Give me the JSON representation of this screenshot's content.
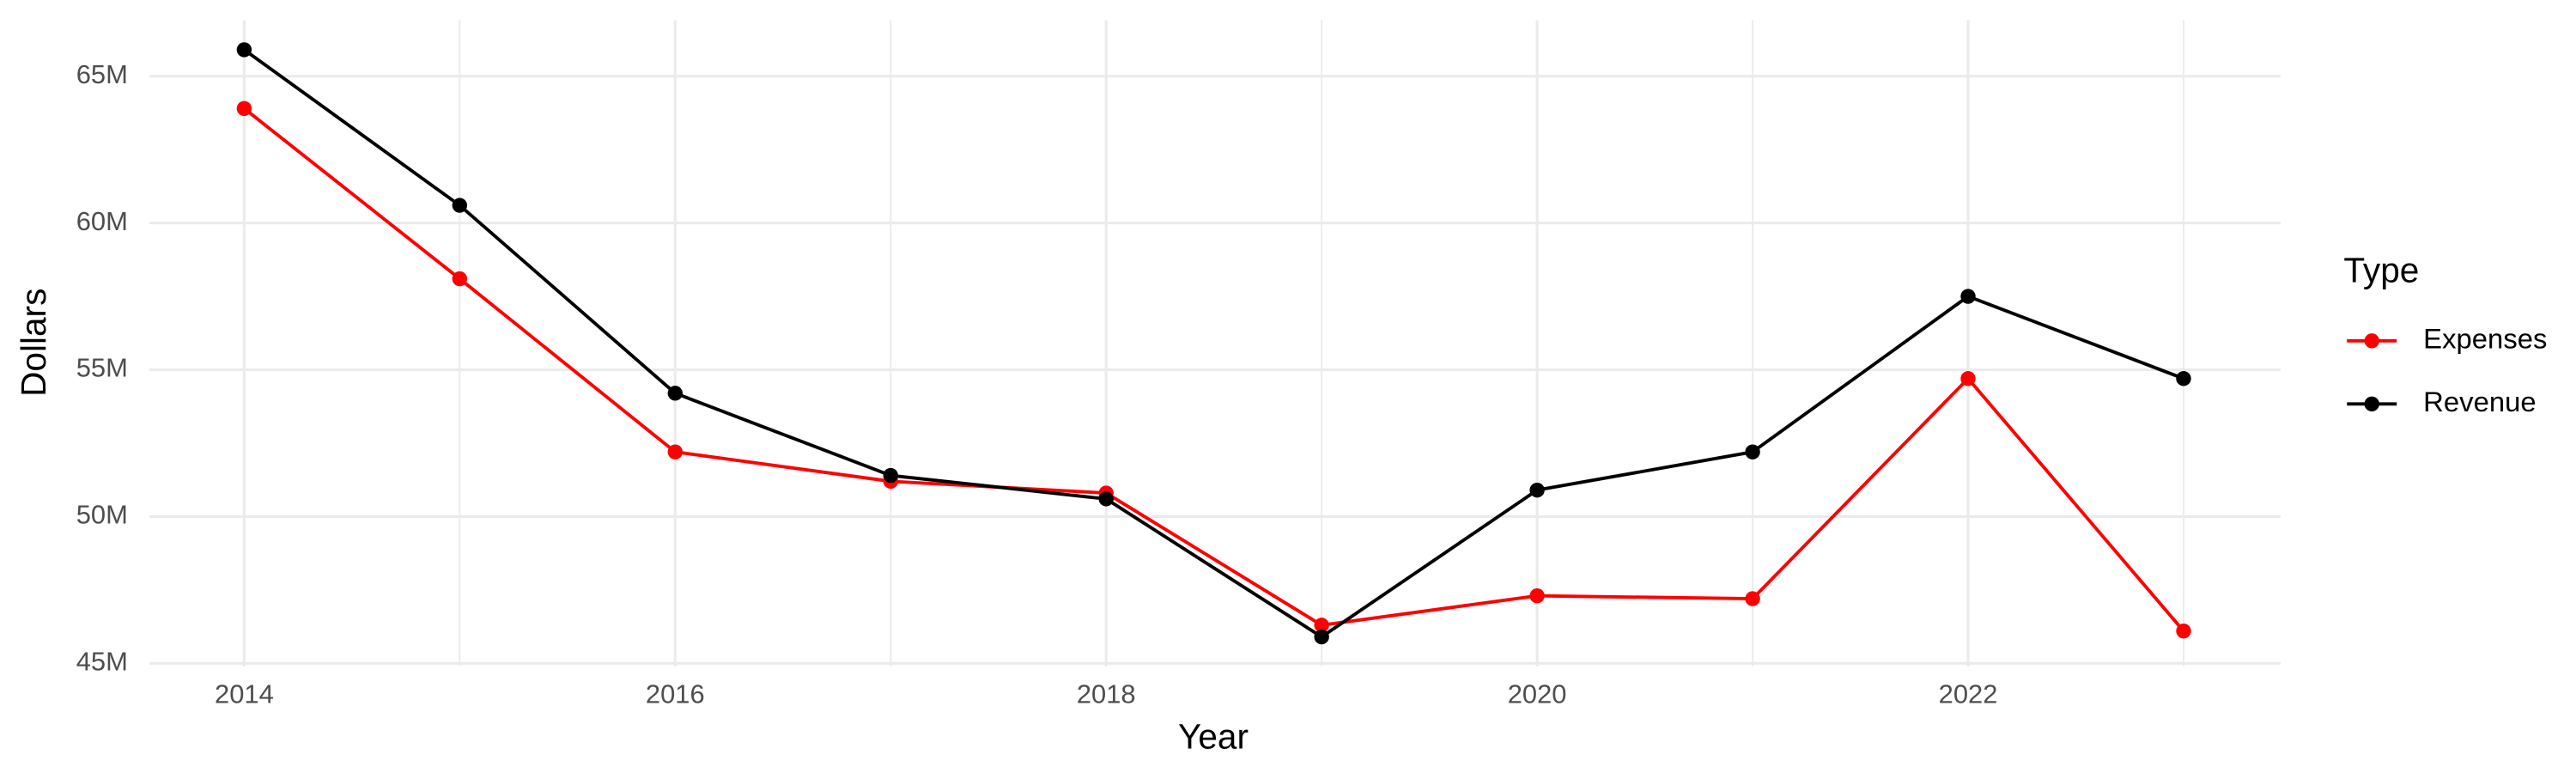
{
  "chart_data": {
    "type": "line",
    "x_label": "Year",
    "y_label": "Dollars",
    "x": [
      2014,
      2015,
      2016,
      2017,
      2018,
      2019,
      2020,
      2021,
      2022,
      2023
    ],
    "series": [
      {
        "name": "Expenses",
        "color": "#ff0000",
        "values": [
          63900000,
          58100000,
          52200000,
          51200000,
          50800000,
          46300000,
          47300000,
          47200000,
          54700000,
          46100000
        ]
      },
      {
        "name": "Revenue",
        "color": "#000000",
        "values": [
          65900000,
          60600000,
          54200000,
          51400000,
          50600000,
          45900000,
          50900000,
          52200000,
          57500000,
          54700000
        ]
      }
    ],
    "xlim": [
      2013.56,
      2023.45
    ],
    "xticks": [
      2014,
      2016,
      2018,
      2020,
      2022
    ],
    "ylim": [
      44900000,
      66900000
    ],
    "yticks": [
      {
        "value": 45000000,
        "label": "45M"
      },
      {
        "value": 50000000,
        "label": "50M"
      },
      {
        "value": 55000000,
        "label": "55M"
      },
      {
        "value": 60000000,
        "label": "60M"
      },
      {
        "value": 65000000,
        "label": "65M"
      }
    ],
    "grid": true,
    "legend_title": "Type",
    "legend_position": "right"
  }
}
